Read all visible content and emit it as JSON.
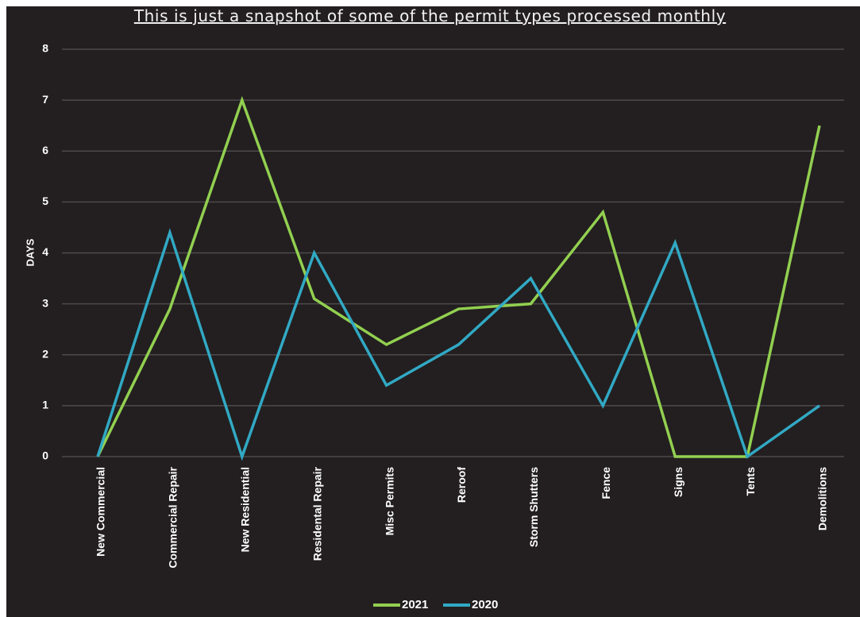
{
  "chart_data": {
    "type": "line",
    "title": "This is just a snapshot of some of the permit types processed monthly",
    "ylabel": "DAYS",
    "xlabel": "",
    "ylim": [
      0,
      8
    ],
    "yticks": [
      0,
      1,
      2,
      3,
      4,
      5,
      6,
      7,
      8
    ],
    "grid": true,
    "legend": "bottom",
    "categories": [
      "New Commercial",
      "Commercial Repair",
      "New Residential",
      "Residental Repair",
      "Misc Permits",
      "Reroof",
      "Storm Shutters",
      "Fence",
      "Signs",
      "Tents",
      "Demolitions"
    ],
    "series": [
      {
        "name": "2021",
        "color": "#92d050",
        "values": [
          0,
          2.9,
          7,
          3.1,
          2.2,
          2.9,
          3,
          4.8,
          0,
          0,
          6.5
        ]
      },
      {
        "name": "2020",
        "color": "#31a9c4",
        "values": [
          0,
          4.4,
          0,
          4,
          1.4,
          2.2,
          3.5,
          1,
          4.2,
          0,
          1
        ]
      }
    ]
  }
}
